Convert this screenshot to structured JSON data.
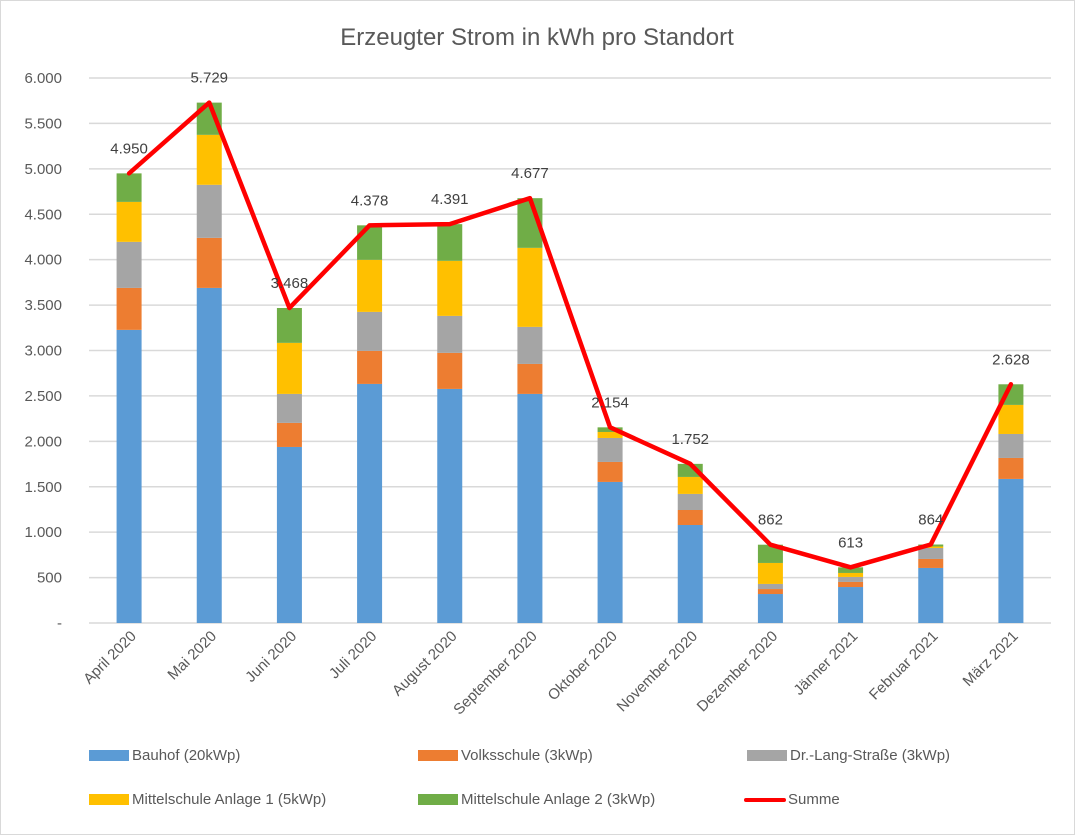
{
  "chart_data": {
    "type": "bar",
    "stacked": true,
    "title": "Erzeugter Strom in kWh pro Standort",
    "xlabel": "",
    "ylabel": "",
    "ylim": [
      0,
      6000
    ],
    "yticks": [
      0,
      500,
      1000,
      1500,
      2000,
      2500,
      3000,
      3500,
      4000,
      4500,
      5000,
      5500,
      6000
    ],
    "ytick_labels": [
      "-",
      "500",
      "1.000",
      "1.500",
      "2.000",
      "2.500",
      "3.000",
      "3.500",
      "4.000",
      "4.500",
      "5.000",
      "5.500",
      "6.000"
    ],
    "grid": true,
    "legend_position": "bottom",
    "categories": [
      "April 2020",
      "Mai 2020",
      "Juni 2020",
      "Juli 2020",
      "August 2020",
      "September 2020",
      "Oktober 2020",
      "November 2020",
      "Dezember 2020",
      "Jänner 2021",
      "Februar 2021",
      "März 2021"
    ],
    "series": [
      {
        "name": "Bauhof (20kWp)",
        "color": "#5b9bd5",
        "values": [
          3227,
          3689,
          1938,
          2632,
          2577,
          2522,
          1553,
          1079,
          319,
          396,
          606,
          1586
        ]
      },
      {
        "name": "Volksschule (3kWp)",
        "color": "#ed7d31",
        "values": [
          462,
          551,
          265,
          364,
          397,
          330,
          220,
          165,
          55,
          56,
          99,
          231
        ]
      },
      {
        "name": "Dr.-Lang-Straße (3kWp)",
        "color": "#a5a5a5",
        "values": [
          507,
          584,
          319,
          429,
          407,
          408,
          264,
          177,
          56,
          55,
          121,
          264
        ]
      },
      {
        "name": "Mittelschule Anlage 1 (5kWp)",
        "color": "#ffc000",
        "values": [
          440,
          550,
          562,
          573,
          606,
          870,
          66,
          187,
          231,
          44,
          16,
          320
        ]
      },
      {
        "name": "Mittelschule Anlage 2 (3kWp)",
        "color": "#70ad47",
        "values": [
          314,
          355,
          384,
          380,
          404,
          547,
          51,
          144,
          201,
          62,
          22,
          227
        ]
      }
    ],
    "line_series": {
      "name": "Summe",
      "color": "#ff0000",
      "type": "line",
      "values": [
        4950,
        5729,
        3468,
        4378,
        4391,
        4677,
        2154,
        1752,
        862,
        613,
        864,
        2628
      ],
      "data_labels": [
        "4.950",
        "5.729",
        "3.468",
        "4.378",
        "4.391",
        "4.677",
        "2.154",
        "1.752",
        "862",
        "613",
        "864",
        "2.628"
      ]
    }
  }
}
